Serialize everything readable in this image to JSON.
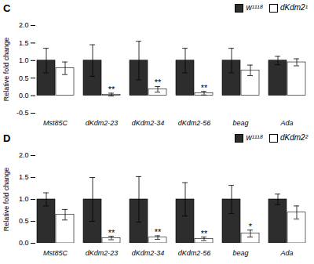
{
  "chart_data": [
    {
      "type": "bar",
      "title": "C",
      "categories": [
        "Mst85C",
        "dKdm2-23",
        "dKdm2-34",
        "dKdm2-56",
        "beag",
        "Ada"
      ],
      "series": [
        {
          "name": "w¹¹¹⁸",
          "color": "#2d2d2d",
          "values": [
            1.0,
            1.0,
            1.0,
            1.0,
            1.0,
            1.0
          ],
          "errors": [
            0.35,
            0.45,
            0.55,
            0.35,
            0.35,
            0.12
          ]
        },
        {
          "name": "dKdm2¹",
          "color": "#ffffff",
          "values": [
            0.78,
            0.03,
            0.18,
            0.07,
            0.72,
            0.95
          ],
          "errors": [
            0.18,
            0.04,
            0.08,
            0.05,
            0.15,
            0.1
          ],
          "significance": [
            null,
            "**",
            "**",
            "**",
            null,
            null
          ]
        }
      ],
      "ylabel": "Relative fold change",
      "ylim": [
        -0.5,
        2.0
      ],
      "yticks": [
        -0.5,
        {
          "value": 0.0,
          "label": "0.0"
        },
        0.5,
        {
          "value": 1.0,
          "label": "1.0"
        },
        1.5,
        {
          "value": 2.0,
          "label": "2.0"
        }
      ],
      "legend": "upper right"
    },
    {
      "type": "bar",
      "title": "D",
      "categories": [
        "Mst85C",
        "dKdm2-23",
        "dKdm2-34",
        "dKdm2-56",
        "beag",
        "Ada"
      ],
      "series": [
        {
          "name": "w¹¹¹⁸",
          "color": "#2d2d2d",
          "values": [
            1.0,
            1.0,
            1.0,
            1.0,
            1.0,
            1.0
          ],
          "errors": [
            0.15,
            0.5,
            0.52,
            0.38,
            0.32,
            0.12
          ]
        },
        {
          "name": "dKdm2²",
          "color": "#ffffff",
          "values": [
            0.65,
            0.12,
            0.13,
            0.1,
            0.22,
            0.7
          ],
          "errors": [
            0.12,
            0.04,
            0.04,
            0.04,
            0.08,
            0.15
          ],
          "significance": [
            null,
            "**",
            "**",
            "**",
            "*",
            null
          ]
        }
      ],
      "ylabel": "Relative fold change",
      "ylim": [
        0,
        2.0
      ],
      "yticks": [
        {
          "value": 0.0,
          "label": "0.0"
        },
        0.5,
        {
          "value": 1.0,
          "label": "1.0"
        },
        1.5,
        {
          "value": 2.0,
          "label": "2.0"
        }
      ],
      "legend": "upper right"
    }
  ]
}
